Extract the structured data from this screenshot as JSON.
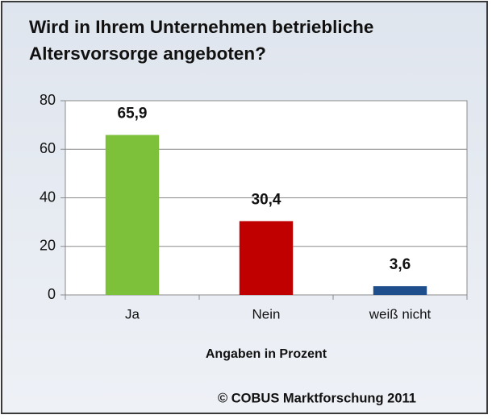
{
  "chart_data": {
    "type": "bar",
    "title": "Wird in Ihrem Unternehmen betriebliche Altersvorsorge angeboten?",
    "categories": [
      "Ja",
      "Nein",
      "weiß nicht"
    ],
    "values": [
      65.9,
      30.4,
      3.6
    ],
    "value_labels": [
      "65,9",
      "30,4",
      "3,6"
    ],
    "colors": [
      "#7dc13a",
      "#c00000",
      "#1f4e8c"
    ],
    "ylim": [
      0,
      80
    ],
    "yticks": [
      0,
      20,
      40,
      60,
      80
    ],
    "grid": true,
    "x_label": "Angaben in Prozent",
    "source": "© COBUS Marktforschung 2011"
  }
}
